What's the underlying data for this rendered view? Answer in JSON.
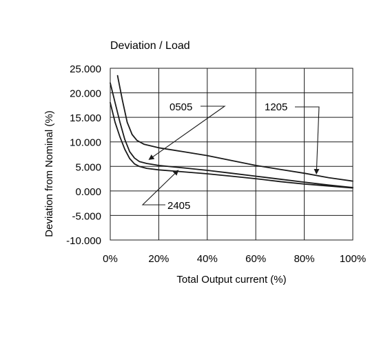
{
  "chart_data": {
    "type": "line",
    "title": "Deviation / Load",
    "xlabel": "Total Output current (%)",
    "ylabel": "Deviation from Nominal (%)",
    "xlim": [
      0,
      100
    ],
    "ylim": [
      -10,
      25
    ],
    "x_ticks": [
      0,
      20,
      40,
      60,
      80,
      100
    ],
    "x_tick_labels": [
      "0%",
      "20%",
      "40%",
      "60%",
      "80%",
      "100%"
    ],
    "y_ticks": [
      25,
      20,
      15,
      10,
      5,
      0,
      -5,
      -10
    ],
    "y_tick_labels": [
      "25.000",
      "20.000",
      "15.000",
      "10.000",
      "5.000",
      "0.000",
      "-5.000",
      "-10.000"
    ],
    "grid": true,
    "series": [
      {
        "name": "1205",
        "x": [
          3,
          5,
          7,
          9,
          11,
          14,
          20,
          30,
          40,
          50,
          60,
          70,
          80,
          90,
          100
        ],
        "y": [
          23.5,
          18.5,
          14,
          11.5,
          10.3,
          9.5,
          8.8,
          8.0,
          7.2,
          6.2,
          5.2,
          4.4,
          3.6,
          2.7,
          2.0
        ]
      },
      {
        "name": "0505",
        "x": [
          0,
          2,
          4,
          6,
          8,
          10,
          12,
          15,
          20,
          30,
          40,
          50,
          60,
          70,
          80,
          90,
          100
        ],
        "y": [
          22,
          18,
          14,
          10.5,
          8.0,
          6.7,
          6.0,
          5.6,
          5.2,
          4.7,
          4.2,
          3.6,
          3.0,
          2.4,
          1.8,
          1.2,
          0.7
        ]
      },
      {
        "name": "2405",
        "x": [
          0,
          2,
          4,
          6,
          8,
          10,
          12,
          15,
          20,
          30,
          40,
          50,
          60,
          70,
          80,
          90,
          100
        ],
        "y": [
          18,
          14,
          11,
          8.5,
          6.6,
          5.5,
          5.0,
          4.6,
          4.3,
          3.9,
          3.5,
          3.0,
          2.5,
          1.9,
          1.4,
          1.0,
          0.6
        ]
      }
    ],
    "annotations": [
      {
        "label": "0505",
        "points_to": {
          "x": 16,
          "y": 6.4
        }
      },
      {
        "label": "1205",
        "points_to": {
          "x": 85,
          "y": 3.5
        }
      },
      {
        "label": "2405",
        "points_to": {
          "x": 28,
          "y": 4.2
        }
      }
    ]
  }
}
